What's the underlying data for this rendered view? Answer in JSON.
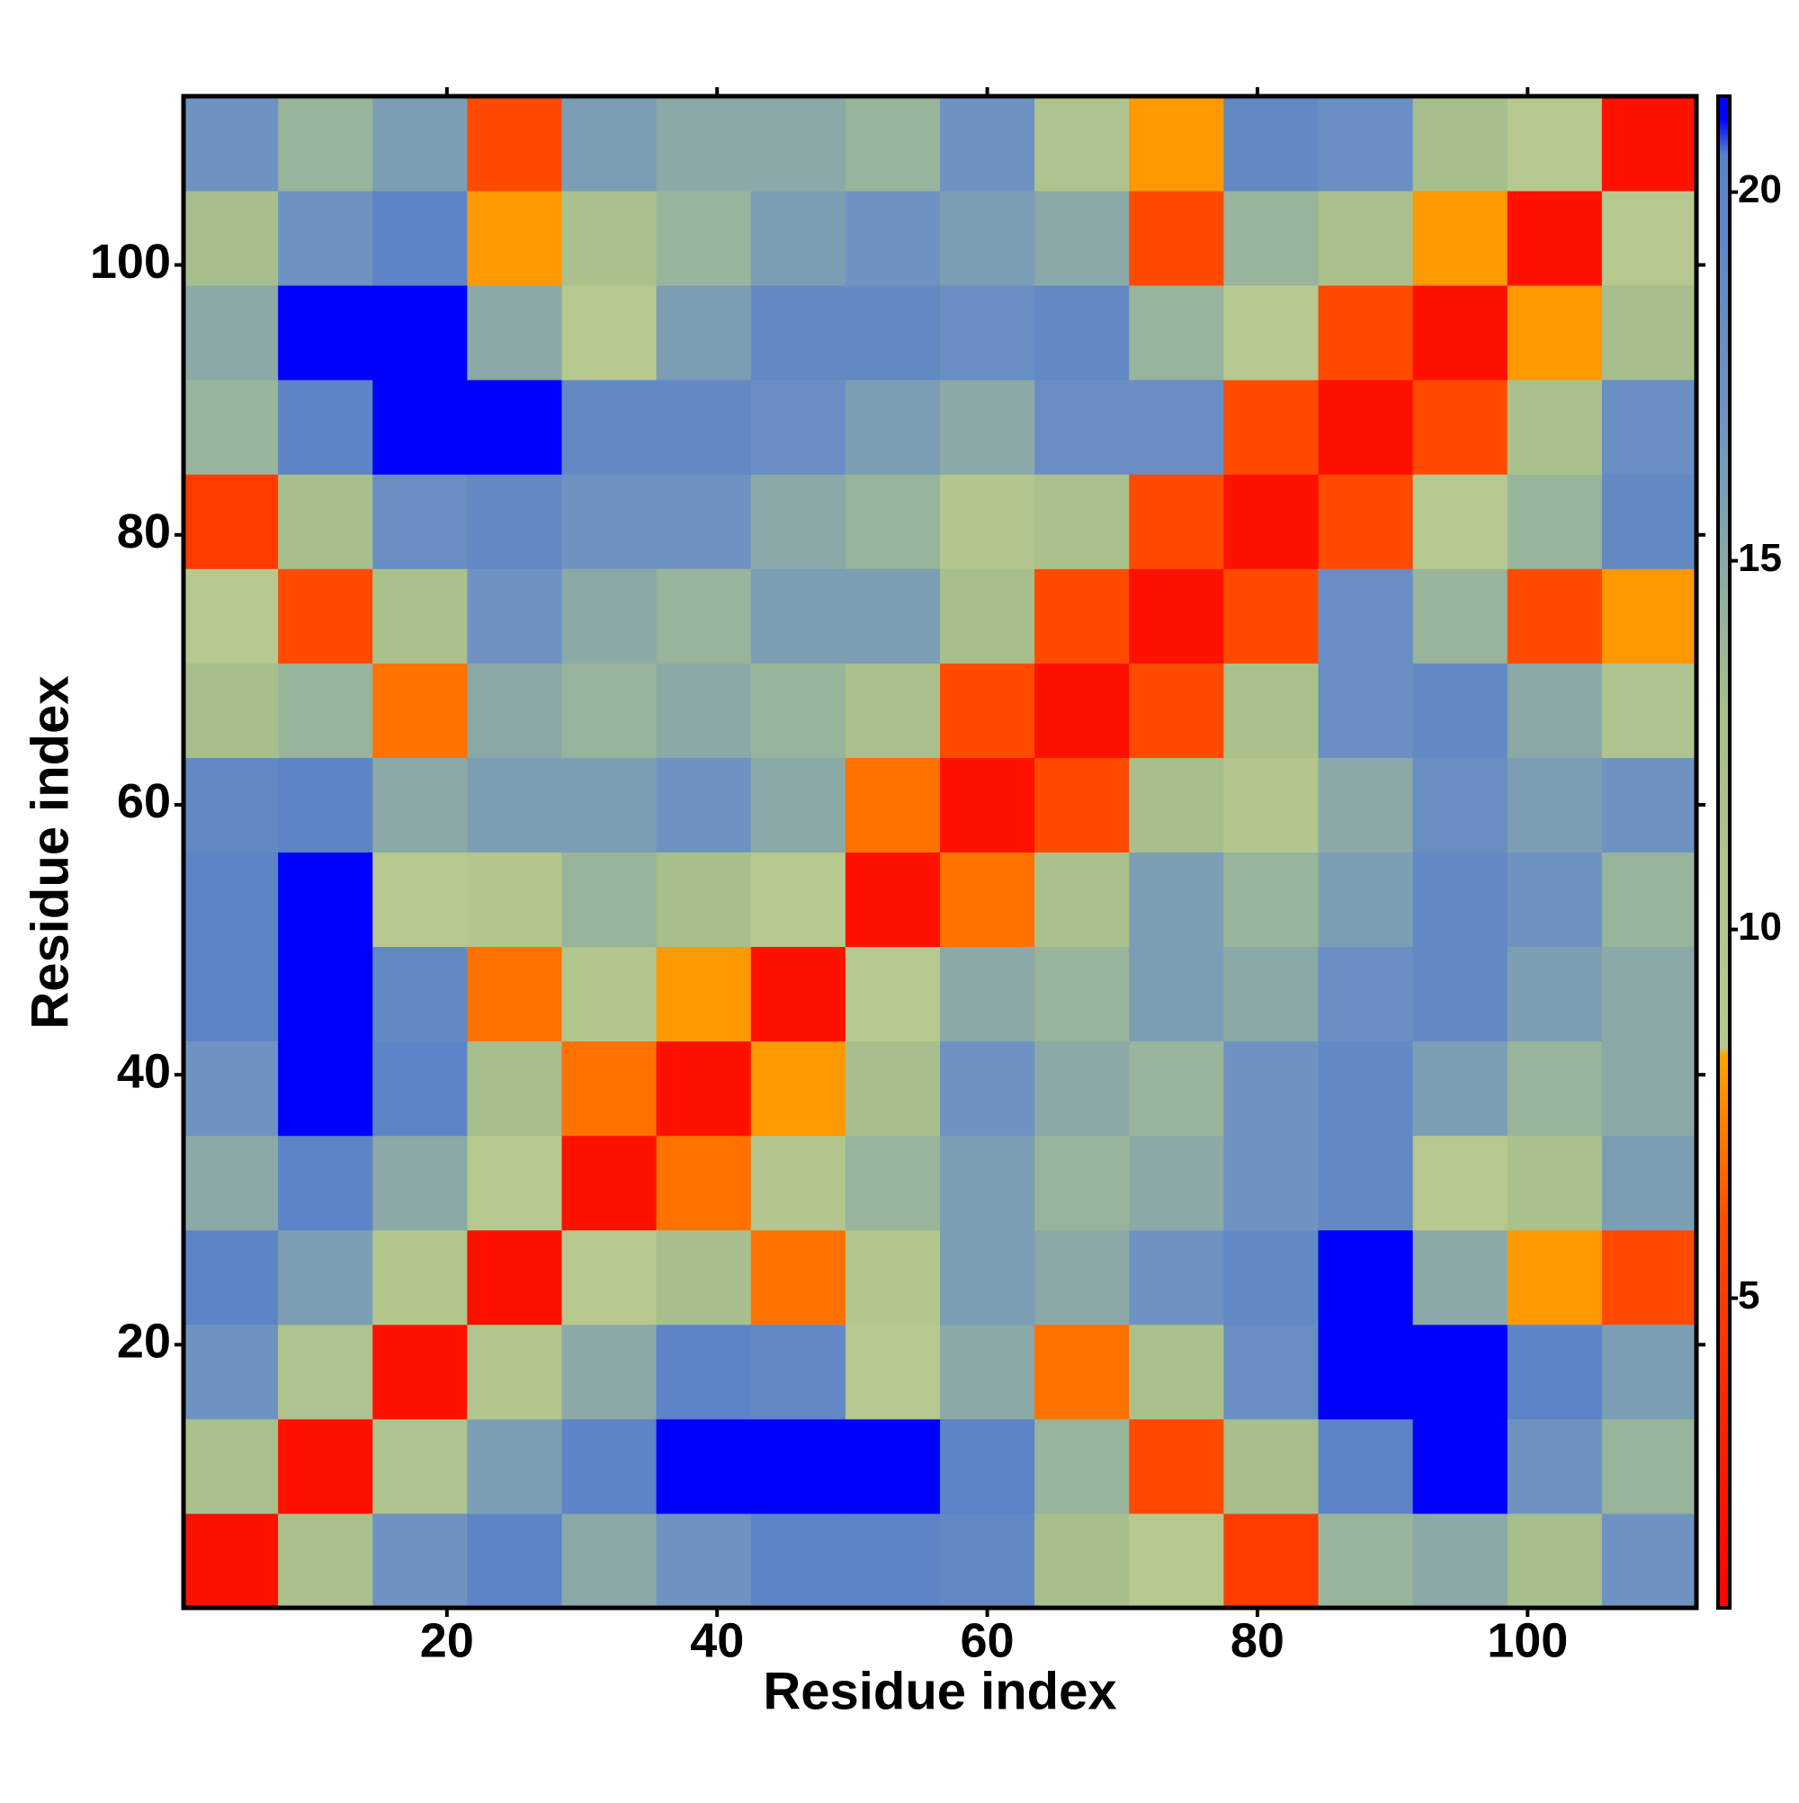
{
  "chart_data": {
    "type": "heatmap",
    "xlabel": "Residue index",
    "ylabel": "Residue index",
    "xlim": [
      0.5,
      112.5
    ],
    "ylim": [
      0.5,
      112.5
    ],
    "xticks": [
      20,
      40,
      60,
      80,
      100
    ],
    "yticks": [
      20,
      40,
      60,
      80,
      100
    ],
    "xbins": [
      0.5,
      7.5,
      14.5,
      21.5,
      28.5,
      35.5,
      42.5,
      49.5,
      56.5,
      63.5,
      70.5,
      77.5,
      84.5,
      91.5,
      98.5,
      105.5,
      112.5
    ],
    "ybins": [
      0.5,
      7.5,
      14.5,
      21.5,
      28.5,
      35.5,
      42.5,
      49.5,
      56.5,
      63.5,
      70.5,
      77.5,
      84.5,
      91.5,
      98.5,
      105.5,
      112.5
    ],
    "values": [
      [
        2,
        12,
        17,
        20,
        15,
        17,
        20,
        20,
        19,
        13,
        9,
        5,
        14,
        15,
        13,
        17
      ],
      [
        12,
        2,
        11,
        16,
        20,
        21,
        21,
        21,
        20,
        14,
        6,
        13,
        20,
        21,
        17,
        14
      ],
      [
        17,
        11,
        2,
        10,
        15,
        20,
        19,
        9,
        15,
        7,
        12,
        18,
        21,
        21,
        20,
        16
      ],
      [
        20,
        16,
        10,
        2,
        9,
        13,
        7,
        10,
        16,
        15,
        17,
        19,
        21,
        15,
        8,
        6
      ],
      [
        15,
        20,
        15,
        9,
        2,
        7,
        10,
        14,
        16,
        14,
        15,
        17,
        19,
        9,
        12,
        16
      ],
      [
        17,
        21,
        20,
        13,
        7,
        2,
        8,
        13,
        17,
        15,
        14,
        17,
        19,
        16,
        14,
        15
      ],
      [
        20,
        21,
        19,
        7,
        10,
        8,
        2,
        9,
        15,
        14,
        16,
        15,
        18,
        19,
        16,
        15
      ],
      [
        20,
        21,
        9,
        10,
        14,
        13,
        9,
        2,
        7,
        12,
        16,
        14,
        16,
        19,
        17,
        14
      ],
      [
        19,
        20,
        15,
        16,
        16,
        17,
        15,
        7,
        2,
        6,
        13,
        10,
        15,
        18,
        16,
        17
      ],
      [
        13,
        14,
        7,
        15,
        14,
        15,
        14,
        12,
        6,
        2,
        6,
        12,
        18,
        19,
        15,
        11
      ],
      [
        9,
        6,
        12,
        17,
        15,
        14,
        16,
        16,
        13,
        6,
        2,
        6,
        18,
        14,
        6,
        8
      ],
      [
        5,
        13,
        18,
        19,
        17,
        17,
        15,
        14,
        10,
        12,
        6,
        2,
        6,
        9,
        14,
        19
      ],
      [
        14,
        20,
        21,
        21,
        19,
        19,
        18,
        16,
        15,
        18,
        18,
        6,
        2,
        6,
        12,
        18
      ],
      [
        15,
        21,
        21,
        15,
        9,
        16,
        19,
        19,
        18,
        19,
        14,
        9,
        6,
        2,
        8,
        13
      ],
      [
        13,
        17,
        20,
        8,
        12,
        14,
        16,
        17,
        16,
        15,
        6,
        14,
        12,
        8,
        2,
        9
      ],
      [
        17,
        14,
        16,
        6,
        16,
        15,
        15,
        14,
        17,
        11,
        8,
        19,
        18,
        13,
        9,
        2
      ]
    ],
    "colorscale": [
      {
        "value": 0.8,
        "color": "#ff0000"
      },
      {
        "value": 6,
        "color": "#ff4a00"
      },
      {
        "value": 8.3,
        "color": "#ffa500"
      },
      {
        "value": 8.4,
        "color": "#b9c98e"
      },
      {
        "value": 13,
        "color": "#a6bf8c"
      },
      {
        "value": 17,
        "color": "#6e93c2"
      },
      {
        "value": 20.5,
        "color": "#5a82c8"
      },
      {
        "value": 21,
        "color": "#0000ff"
      }
    ],
    "colorbar": {
      "lim": [
        0.8,
        21.3
      ],
      "ticks": [
        5,
        10,
        15,
        20
      ]
    }
  }
}
